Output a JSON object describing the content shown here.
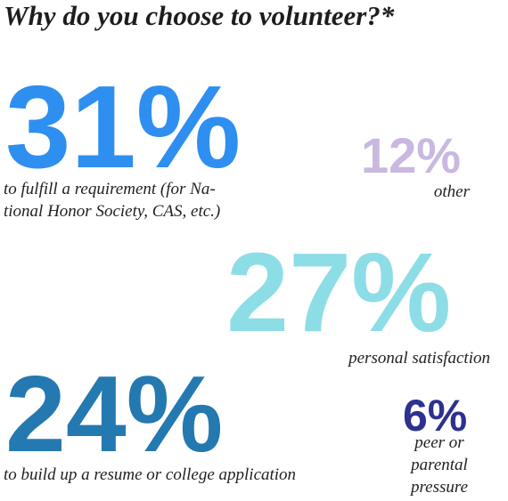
{
  "title": "Why do you choose to volunteer?*",
  "stats": [
    {
      "figure": "31%",
      "lines": [
        "to fulfill a requirement (for Na-",
        "tional Honor Society, CAS, etc.)"
      ]
    },
    {
      "figure": "12%",
      "lines": [
        "other"
      ]
    },
    {
      "figure": "27%",
      "lines": [
        "personal satisfaction"
      ]
    },
    {
      "figure": "24%",
      "lines": [
        "to build up a resume or college application"
      ]
    },
    {
      "figure": "6%",
      "lines": [
        "peer or",
        "parental",
        "pressure"
      ]
    }
  ]
}
